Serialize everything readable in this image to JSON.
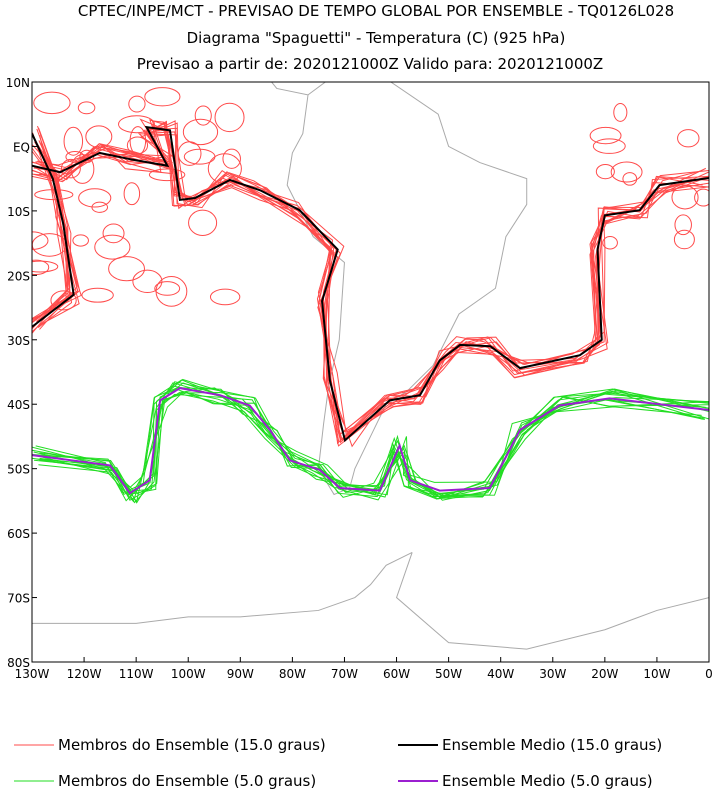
{
  "chart_data": {
    "type": "line",
    "title": "CPTEC/INPE/MCT - PREVISAO DE TEMPO GLOBAL POR ENSEMBLE - TQ0126L028",
    "subtitle": "Diagrama \"Spaguetti\" - Temperatura (C) (925 hPa)",
    "subtitle2": "Previsao a partir de: 2020121000Z  Valido para: 2020121000Z",
    "xlim": [
      -130,
      0
    ],
    "ylim": [
      -80,
      10
    ],
    "x_ticks": [
      {
        "value": -130,
        "label": "130W"
      },
      {
        "value": -120,
        "label": "120W"
      },
      {
        "value": -110,
        "label": "110W"
      },
      {
        "value": -100,
        "label": "100W"
      },
      {
        "value": -90,
        "label": "90W"
      },
      {
        "value": -80,
        "label": "80W"
      },
      {
        "value": -70,
        "label": "70W"
      },
      {
        "value": -60,
        "label": "60W"
      },
      {
        "value": -50,
        "label": "50W"
      },
      {
        "value": -40,
        "label": "40W"
      },
      {
        "value": -30,
        "label": "30W"
      },
      {
        "value": -20,
        "label": "20W"
      },
      {
        "value": -10,
        "label": "10W"
      },
      {
        "value": 0,
        "label": "0"
      }
    ],
    "y_ticks": [
      {
        "value": 10,
        "label": "10N"
      },
      {
        "value": 0,
        "label": "EQ"
      },
      {
        "value": -10,
        "label": "10S"
      },
      {
        "value": -20,
        "label": "20S"
      },
      {
        "value": -30,
        "label": "30S"
      },
      {
        "value": -40,
        "label": "40S"
      },
      {
        "value": -50,
        "label": "50S"
      },
      {
        "value": -60,
        "label": "60S"
      },
      {
        "value": -70,
        "label": "70S"
      },
      {
        "value": -80,
        "label": "80S"
      }
    ],
    "legend": [
      {
        "label": "Membros do Ensemble (15.0 graus)",
        "color": "#ff4b4b"
      },
      {
        "label": "Ensemble Medio (15.0 graus)",
        "color": "#000000"
      },
      {
        "label": "Membros do Ensemble (5.0 graus)",
        "color": "#22dd22"
      },
      {
        "label": "Ensemble Medio (5.0 graus)",
        "color": "#9b1fd0"
      }
    ],
    "series": [
      {
        "name": "Ensemble Medio (15.0 graus)",
        "color": "#000000",
        "points": [
          [
            0,
            -4.9
          ],
          [
            -9.5,
            -6
          ],
          [
            -13.3,
            -9.9
          ],
          [
            -20,
            -10.7
          ],
          [
            -21.4,
            -16
          ],
          [
            -20.6,
            -30
          ],
          [
            -24.8,
            -32.4
          ],
          [
            -36.3,
            -34.4
          ],
          [
            -42,
            -31
          ],
          [
            -47.8,
            -30.8
          ],
          [
            -51.7,
            -33.2
          ],
          [
            -55.5,
            -38.6
          ],
          [
            -61.3,
            -39.4
          ],
          [
            -69.9,
            -45.6
          ],
          [
            -72.8,
            -36.3
          ],
          [
            -74.3,
            -24
          ],
          [
            -71.3,
            -16
          ],
          [
            -78.6,
            -9.9
          ],
          [
            -86.2,
            -6.8
          ],
          [
            -92,
            -5.2
          ],
          [
            -98.7,
            -8
          ],
          [
            -101.6,
            -8.3
          ],
          [
            -103.5,
            2.5
          ],
          [
            -108,
            3
          ],
          [
            -104,
            -3
          ],
          [
            -111,
            -2
          ],
          [
            -117,
            -1
          ],
          [
            -124.6,
            -4
          ],
          [
            -130,
            -3
          ]
        ]
      },
      {
        "name": "Ensemble Medio (15.0 graus) west",
        "color": "#000000",
        "points": [
          [
            -130,
            -28
          ],
          [
            -122,
            -23
          ],
          [
            -124,
            -12
          ],
          [
            -126,
            -5
          ],
          [
            -130,
            2
          ]
        ]
      },
      {
        "name": "Ensemble Medio (5.0 graus)",
        "color": "#9b1fd0",
        "points": [
          [
            -130,
            -47.9
          ],
          [
            -115,
            -49.5
          ],
          [
            -111.2,
            -53.8
          ],
          [
            -107.4,
            -51.8
          ],
          [
            -105.4,
            -39.4
          ],
          [
            -101.6,
            -37.5
          ],
          [
            -93.9,
            -38.6
          ],
          [
            -88.2,
            -40.2
          ],
          [
            -84.3,
            -44
          ],
          [
            -80.5,
            -48.7
          ],
          [
            -74.7,
            -50.2
          ],
          [
            -70.9,
            -53
          ],
          [
            -63.2,
            -53.4
          ],
          [
            -59.4,
            -46.4
          ],
          [
            -57.4,
            -51.8
          ],
          [
            -51.7,
            -53.4
          ],
          [
            -42.1,
            -53
          ],
          [
            -36.3,
            -44
          ],
          [
            -28.7,
            -40.2
          ],
          [
            -19.1,
            -39.1
          ],
          [
            0,
            -40.9
          ]
        ]
      }
    ],
    "coastlines": [
      [
        [
          -77,
          8
        ],
        [
          -72,
          11
        ],
        [
          -62,
          10.5
        ],
        [
          -52,
          5
        ],
        [
          -50,
          0
        ],
        [
          -44,
          -2.5
        ],
        [
          -35,
          -5
        ],
        [
          -35,
          -9
        ],
        [
          -39,
          -14
        ],
        [
          -41,
          -22
        ],
        [
          -48,
          -26
        ],
        [
          -53,
          -34
        ],
        [
          -58,
          -38
        ],
        [
          -62,
          -40
        ],
        [
          -65,
          -45
        ],
        [
          -68,
          -50
        ],
        [
          -69,
          -53
        ],
        [
          -72,
          -54
        ],
        [
          -75,
          -50
        ],
        [
          -74,
          -43
        ],
        [
          -73,
          -37
        ],
        [
          -71,
          -30
        ],
        [
          -70,
          -18
        ],
        [
          -76,
          -14
        ],
        [
          -81,
          -6
        ],
        [
          -80,
          -1
        ],
        [
          -78,
          2
        ],
        [
          -77,
          8
        ],
        [
          -83,
          9
        ],
        [
          -86,
          12
        ],
        [
          -88,
          14
        ]
      ],
      [
        [
          -57,
          -63
        ],
        [
          -62,
          -65
        ],
        [
          -65,
          -68
        ],
        [
          -68,
          -70
        ],
        [
          -75,
          -72
        ],
        [
          -90,
          -73
        ],
        [
          -100,
          -73
        ],
        [
          -110,
          -74
        ],
        [
          -120,
          -74
        ],
        [
          -130,
          -74
        ]
      ],
      [
        [
          -57,
          -63
        ],
        [
          -60,
          -70
        ],
        [
          -50,
          -77
        ],
        [
          -35,
          -78
        ],
        [
          -20,
          -75
        ],
        [
          -10,
          -72
        ],
        [
          0,
          -70
        ]
      ]
    ]
  }
}
